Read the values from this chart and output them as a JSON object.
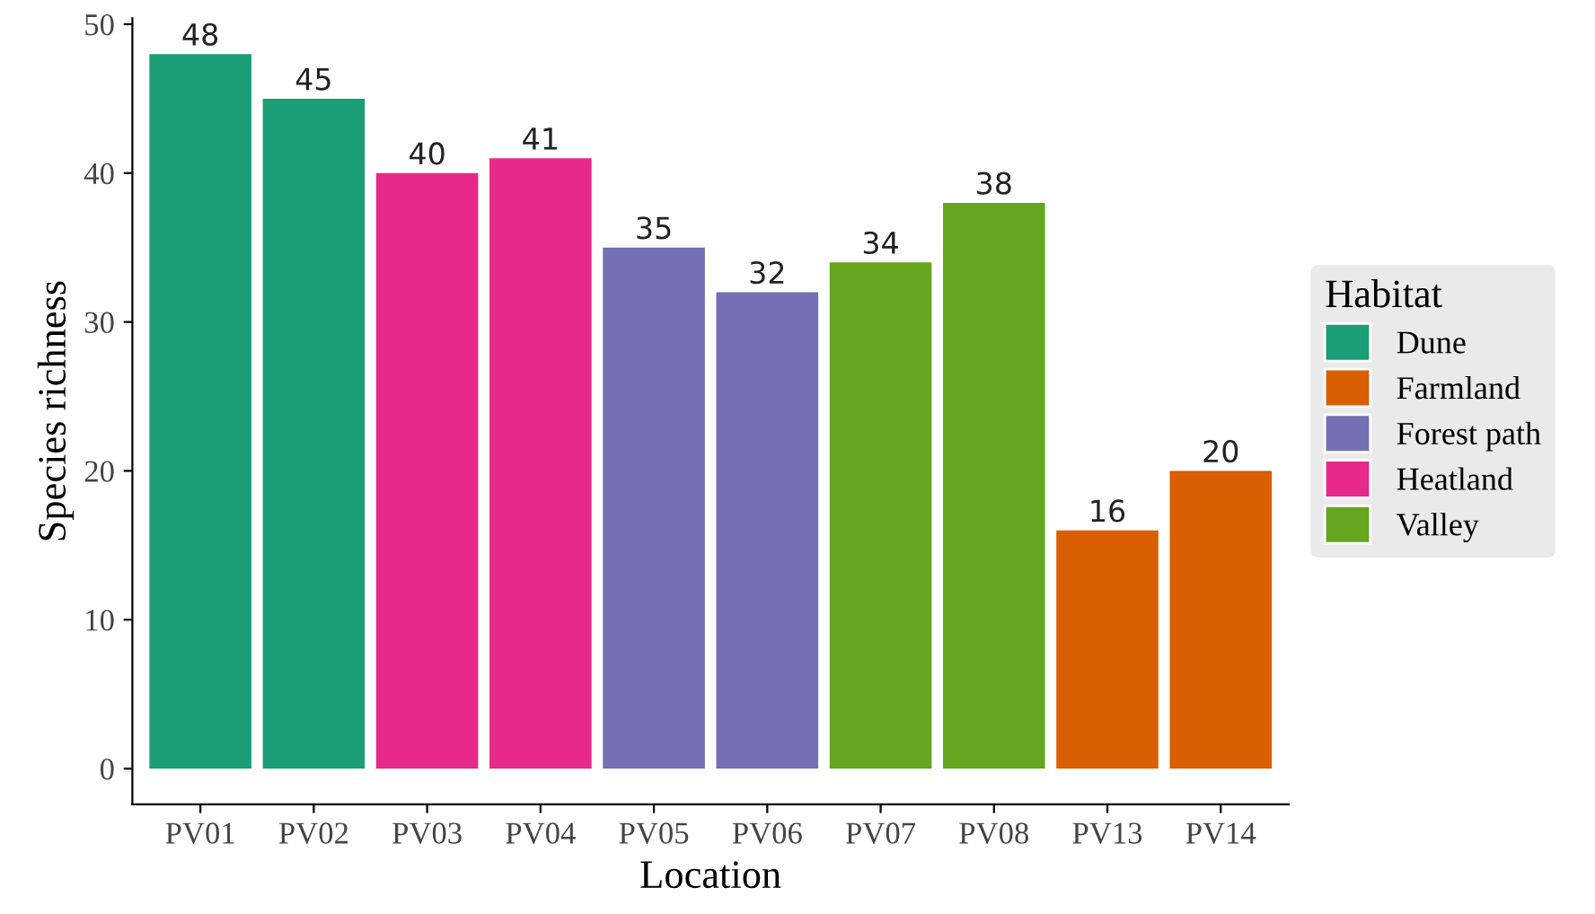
{
  "chart_data": {
    "type": "bar",
    "xlabel": "Location",
    "ylabel": "Species richness",
    "legend_title": "Habitat",
    "categories": [
      "PV01",
      "PV02",
      "PV03",
      "PV04",
      "PV05",
      "PV06",
      "PV07",
      "PV08",
      "PV13",
      "PV14"
    ],
    "series": [
      {
        "name": "Dune",
        "color": "#1b9e77",
        "values": [
          48,
          45,
          null,
          null,
          null,
          null,
          null,
          null,
          null,
          null
        ]
      },
      {
        "name": "Farmland",
        "color": "#d95f02",
        "values": [
          null,
          null,
          null,
          null,
          null,
          null,
          null,
          null,
          16,
          20
        ]
      },
      {
        "name": "Forest path",
        "color": "#7570b3",
        "values": [
          null,
          null,
          null,
          null,
          35,
          32,
          null,
          null,
          null,
          null
        ]
      },
      {
        "name": "Heatland",
        "color": "#e7298a",
        "values": [
          null,
          null,
          40,
          41,
          null,
          null,
          null,
          null,
          null,
          null
        ]
      },
      {
        "name": "Valley",
        "color": "#66a61e",
        "values": [
          null,
          null,
          null,
          null,
          null,
          null,
          34,
          38,
          null,
          null
        ]
      }
    ],
    "ylim": [
      -2.4,
      50.4
    ],
    "yticks": [
      0,
      10,
      20,
      30,
      40,
      50
    ],
    "data_labels": true,
    "legend": "right",
    "grid": false
  }
}
